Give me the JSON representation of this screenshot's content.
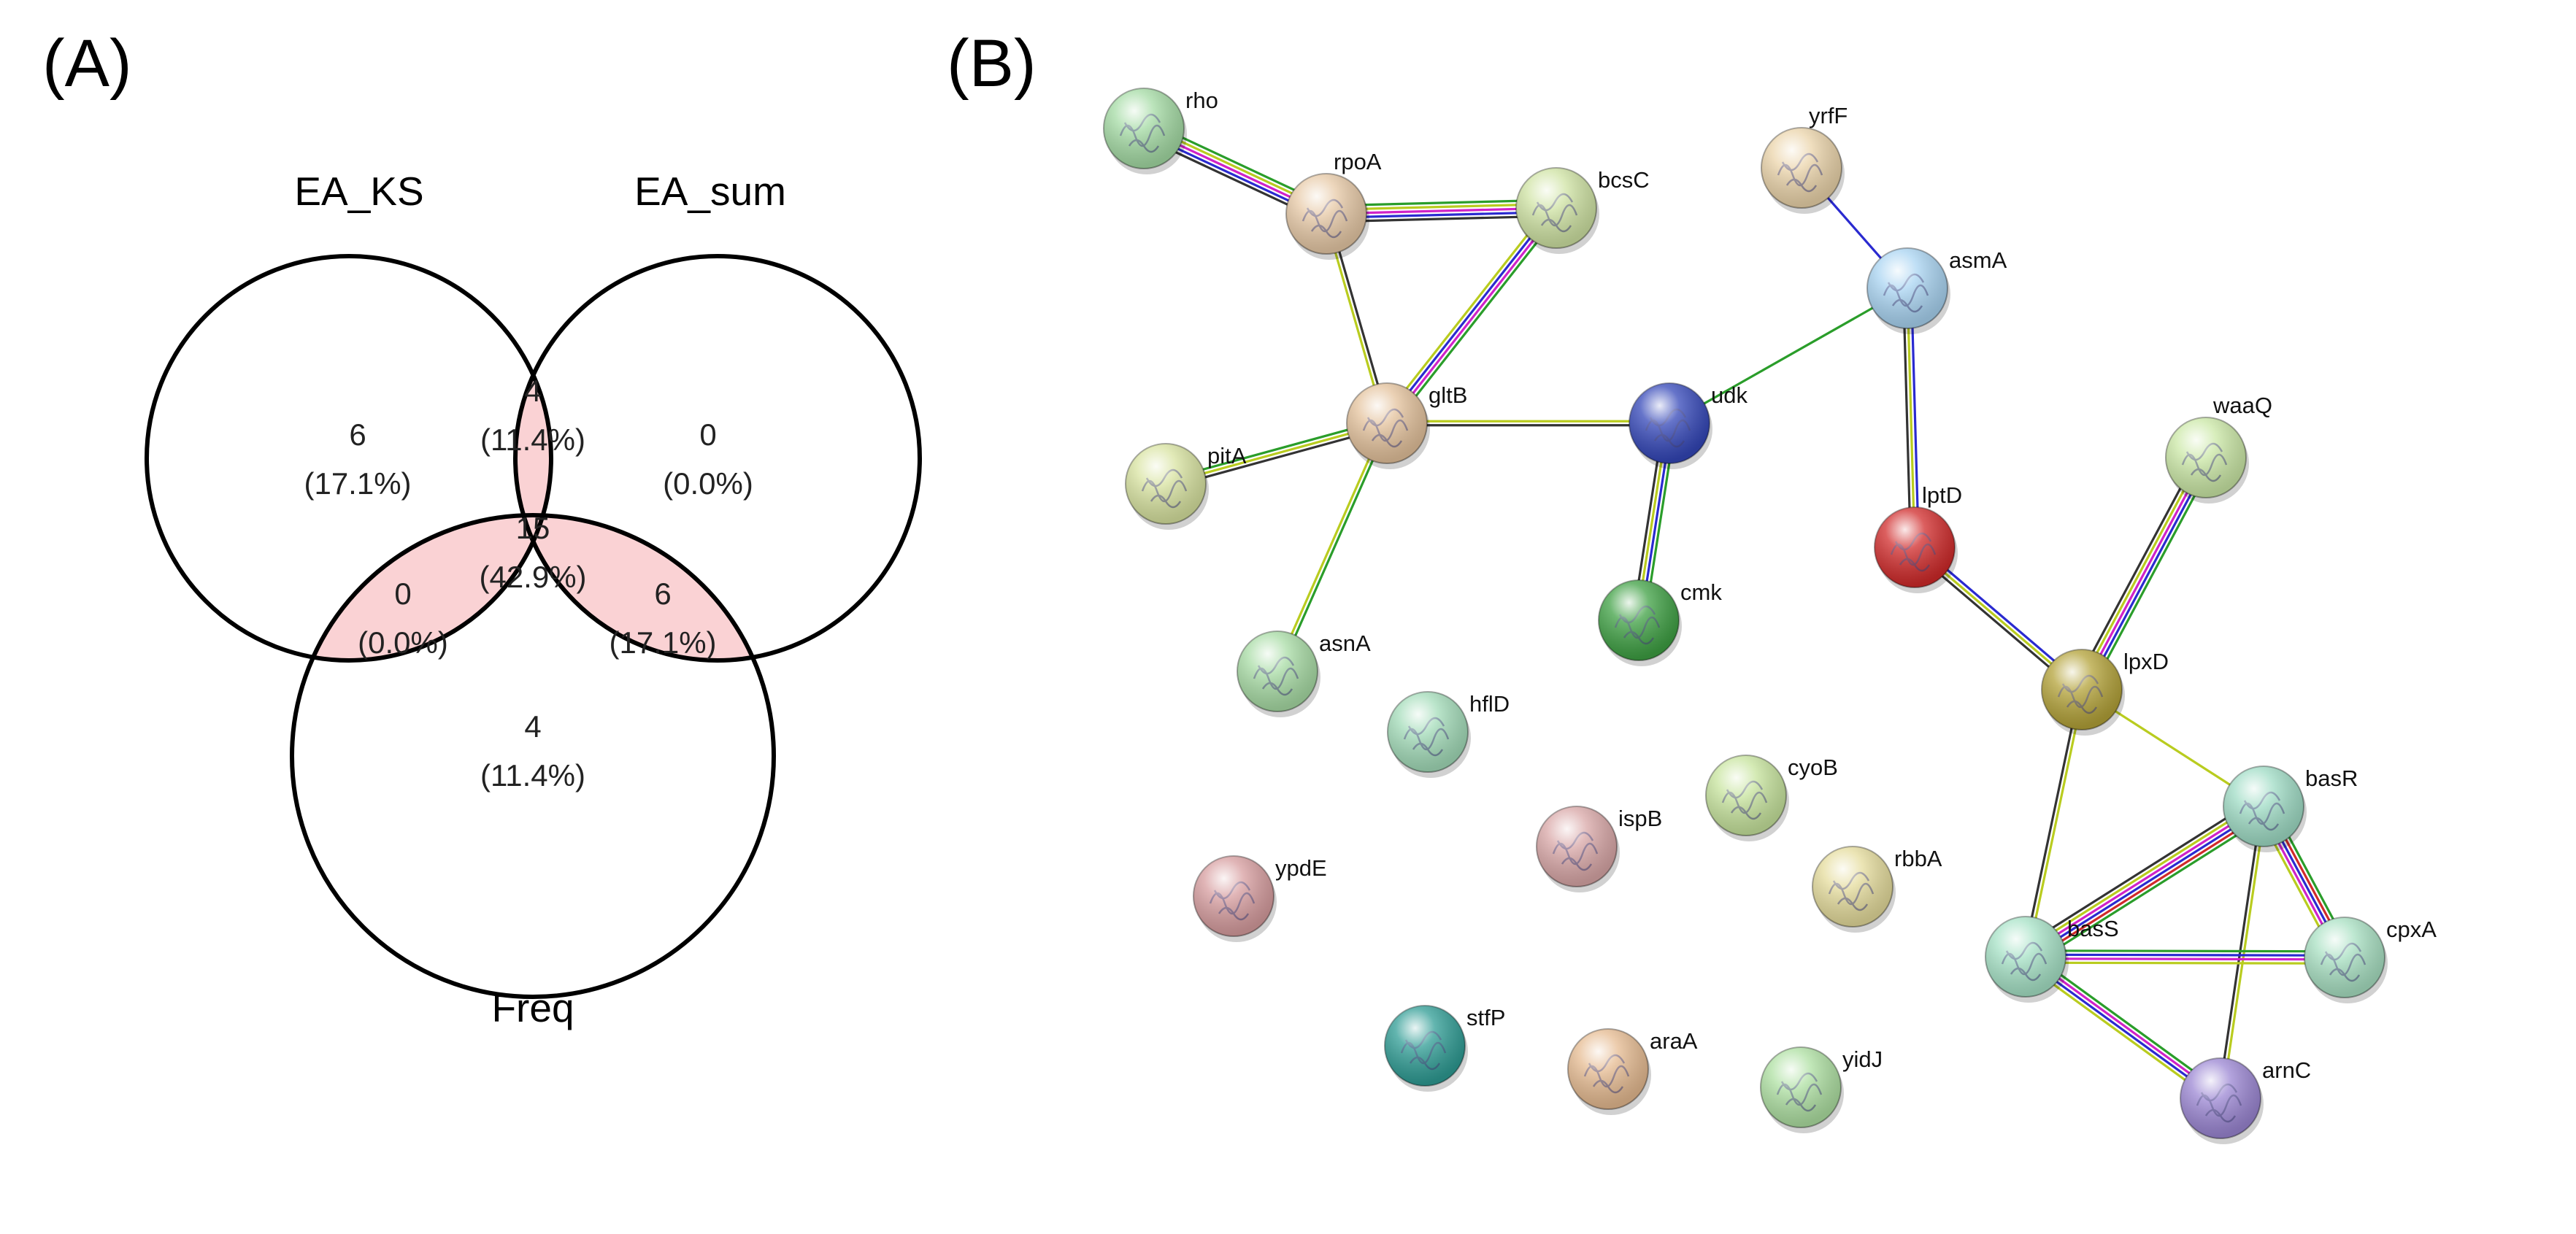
{
  "panels": {
    "a_label": "(A)",
    "b_label": "(B)"
  },
  "venn": {
    "sets": {
      "ea_ks": "EA_KS",
      "ea_sum": "EA_sum",
      "freq": "Freq"
    },
    "highlight_color": "#fad2d4",
    "regions": {
      "ks_only": {
        "count": "6",
        "pct": "(17.1%)"
      },
      "sum_only": {
        "count": "0",
        "pct": "(0.0%)"
      },
      "freq_only": {
        "count": "4",
        "pct": "(11.4%)"
      },
      "ks_sum": {
        "count": "4",
        "pct": "(11.4%)"
      },
      "ks_freq": {
        "count": "0",
        "pct": "(0.0%)"
      },
      "sum_freq": {
        "count": "6",
        "pct": "(17.1%)"
      },
      "all": {
        "count": "15",
        "pct": "(42.9%)"
      }
    }
  },
  "network": {
    "nodes": [
      {
        "id": "rho",
        "label": "rho",
        "color": "#a4dba4"
      },
      {
        "id": "rpoA",
        "label": "rpoA",
        "color": "#e7c9a6"
      },
      {
        "id": "bcsC",
        "label": "bcsC",
        "color": "#cfe3a3"
      },
      {
        "id": "yrfF",
        "label": "yrfF",
        "color": "#ebd4aa"
      },
      {
        "id": "asmA",
        "label": "asmA",
        "color": "#a9d4f2"
      },
      {
        "id": "gltB",
        "label": "gltB",
        "color": "#e4c29c"
      },
      {
        "id": "udk",
        "label": "udk",
        "color": "#3346b8"
      },
      {
        "id": "pitA",
        "label": "pitA",
        "color": "#d8e3a0"
      },
      {
        "id": "waaQ",
        "label": "waaQ",
        "color": "#cbe8a6"
      },
      {
        "id": "lptD",
        "label": "lptD",
        "color": "#d02a2a"
      },
      {
        "id": "cmk",
        "label": "cmk",
        "color": "#3ea043"
      },
      {
        "id": "asnA",
        "label": "asnA",
        "color": "#a8dca5"
      },
      {
        "id": "lpxD",
        "label": "lpxD",
        "color": "#b3a238"
      },
      {
        "id": "hflD",
        "label": "hflD",
        "color": "#a3dcb9"
      },
      {
        "id": "cyoB",
        "label": "cyoB",
        "color": "#c7e49d"
      },
      {
        "id": "basR",
        "label": "basR",
        "color": "#9fdcc5"
      },
      {
        "id": "ispB",
        "label": "ispB",
        "color": "#d9a7a7"
      },
      {
        "id": "rbbA",
        "label": "rbbA",
        "color": "#e5dc9c"
      },
      {
        "id": "ypdE",
        "label": "ypdE",
        "color": "#d79d9f"
      },
      {
        "id": "cpxA",
        "label": "cpxA",
        "color": "#a8e0c2"
      },
      {
        "id": "basS",
        "label": "basS",
        "color": "#a6e2c6"
      },
      {
        "id": "stfP",
        "label": "stfP",
        "color": "#2e9c94"
      },
      {
        "id": "araA",
        "label": "araA",
        "color": "#e6bb91"
      },
      {
        "id": "yidJ",
        "label": "yidJ",
        "color": "#aee0a2"
      },
      {
        "id": "arnC",
        "label": "arnC",
        "color": "#9b86d3"
      }
    ],
    "edges": [
      {
        "from": "rho",
        "to": "rpoA",
        "colors": [
          "#2a9d2a",
          "#b9cc1f",
          "#d022c8",
          "#2a2ad0",
          "#333333"
        ]
      },
      {
        "from": "rpoA",
        "to": "bcsC",
        "colors": [
          "#2a9d2a",
          "#b9cc1f",
          "#d022c8",
          "#2a2ad0",
          "#333333"
        ]
      },
      {
        "from": "rpoA",
        "to": "gltB",
        "colors": [
          "#333333",
          "#b9cc1f"
        ]
      },
      {
        "from": "bcsC",
        "to": "gltB",
        "colors": [
          "#2a9d2a",
          "#d022c8",
          "#2a2ad0",
          "#b9cc1f"
        ]
      },
      {
        "from": "pitA",
        "to": "gltB",
        "colors": [
          "#2a9d2a",
          "#b9cc1f",
          "#333333"
        ]
      },
      {
        "from": "gltB",
        "to": "udk",
        "colors": [
          "#b9cc1f",
          "#333333"
        ]
      },
      {
        "from": "gltB",
        "to": "asnA",
        "colors": [
          "#2a9d2a",
          "#b9cc1f"
        ]
      },
      {
        "from": "udk",
        "to": "asmA",
        "colors": [
          "#2a9d2a"
        ]
      },
      {
        "from": "udk",
        "to": "cmk",
        "colors": [
          "#2a9d2a",
          "#2a2ad0",
          "#b9cc1f",
          "#333333"
        ]
      },
      {
        "from": "yrfF",
        "to": "asmA",
        "colors": [
          "#2a2ad0"
        ]
      },
      {
        "from": "asmA",
        "to": "lptD",
        "colors": [
          "#2a2ad0",
          "#b9cc1f",
          "#333333"
        ]
      },
      {
        "from": "lptD",
        "to": "lpxD",
        "colors": [
          "#2a2ad0",
          "#b9cc1f",
          "#333333"
        ]
      },
      {
        "from": "waaQ",
        "to": "lpxD",
        "colors": [
          "#2a9d2a",
          "#2a2ad0",
          "#d022c8",
          "#b9cc1f",
          "#333333"
        ]
      },
      {
        "from": "lpxD",
        "to": "basR",
        "colors": [
          "#b9cc1f"
        ]
      },
      {
        "from": "lpxD",
        "to": "basS",
        "colors": [
          "#b9cc1f",
          "#333333"
        ]
      },
      {
        "from": "basR",
        "to": "basS",
        "colors": [
          "#2a9d2a",
          "#d02a2a",
          "#2a2ad0",
          "#d022c8",
          "#b9cc1f",
          "#333333"
        ]
      },
      {
        "from": "basR",
        "to": "cpxA",
        "colors": [
          "#2a9d2a",
          "#d02a2a",
          "#2a2ad0",
          "#d022c8",
          "#b9cc1f"
        ]
      },
      {
        "from": "basR",
        "to": "arnC",
        "colors": [
          "#b9cc1f",
          "#333333"
        ]
      },
      {
        "from": "basS",
        "to": "cpxA",
        "colors": [
          "#2a9d2a",
          "#2a2ad0",
          "#d022c8",
          "#b9cc1f"
        ]
      },
      {
        "from": "basS",
        "to": "arnC",
        "colors": [
          "#2a9d2a",
          "#d022c8",
          "#2a2ad0",
          "#b9cc1f"
        ]
      }
    ]
  }
}
